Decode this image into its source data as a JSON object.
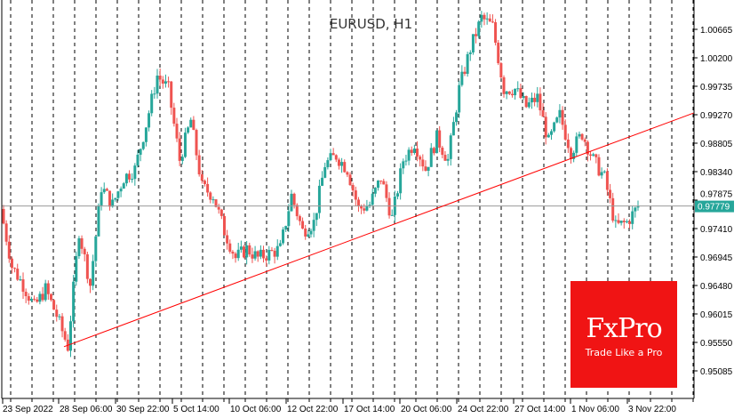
{
  "chart_data": {
    "type": "candlestick",
    "title": "EURUSD, H1",
    "symbol": "EURUSD",
    "timeframe": "H1",
    "y_ticks": [
      "1.00665",
      "1.00200",
      "0.99735",
      "0.99270",
      "0.98805",
      "0.98340",
      "0.97875",
      "0.97410",
      "0.96945",
      "0.96480",
      "0.96015",
      "0.95550",
      "0.95085"
    ],
    "ylim": [
      0.9465,
      1.0093
    ],
    "x_ticks": [
      "23 Sep 2022",
      "28 Sep 06:00",
      "30 Sep 22:00",
      "5 Oct 14:00",
      "10 Oct 06:00",
      "12 Oct 22:00",
      "17 Oct 14:00",
      "20 Oct 06:00",
      "24 Oct 22:00",
      "27 Oct 14:00",
      "1 Nov 06:00",
      "3 Nov 22:00"
    ],
    "current_price": "0.97779",
    "approx_closes": [
      0.9773,
      0.9679,
      0.9649,
      0.9613,
      0.9642,
      0.9599,
      0.9548,
      0.9737,
      0.9649,
      0.9809,
      0.978,
      0.9824,
      0.9838,
      0.9911,
      0.9991,
      0.9969,
      0.9853,
      0.9918,
      0.9809,
      0.9795,
      0.9737,
      0.9693,
      0.9708,
      0.9693,
      0.97,
      0.9708,
      0.9795,
      0.9737,
      0.9751,
      0.9846,
      0.986,
      0.9838,
      0.9773,
      0.978,
      0.9824,
      0.9758,
      0.9853,
      0.9882,
      0.9838,
      0.9889,
      0.9853,
      0.9969,
      1.0035,
      1.0085,
      1.0071,
      0.9969,
      0.9969,
      0.994,
      0.9955,
      0.9882,
      0.9926,
      0.9867,
      0.9896,
      0.9853,
      0.9824,
      0.9744,
      0.9751,
      0.9777
    ],
    "trendline": {
      "from_price": 0.9548,
      "to_price": 0.993,
      "color": "#ff0000"
    },
    "grid": "vertical dashed",
    "colors": {
      "bull": "#26a69a",
      "bear": "#ef5350",
      "price_label_bg": "#26a69a"
    }
  },
  "logo": {
    "brand": "FxPro",
    "tagline": "Trade Like a Pro"
  }
}
